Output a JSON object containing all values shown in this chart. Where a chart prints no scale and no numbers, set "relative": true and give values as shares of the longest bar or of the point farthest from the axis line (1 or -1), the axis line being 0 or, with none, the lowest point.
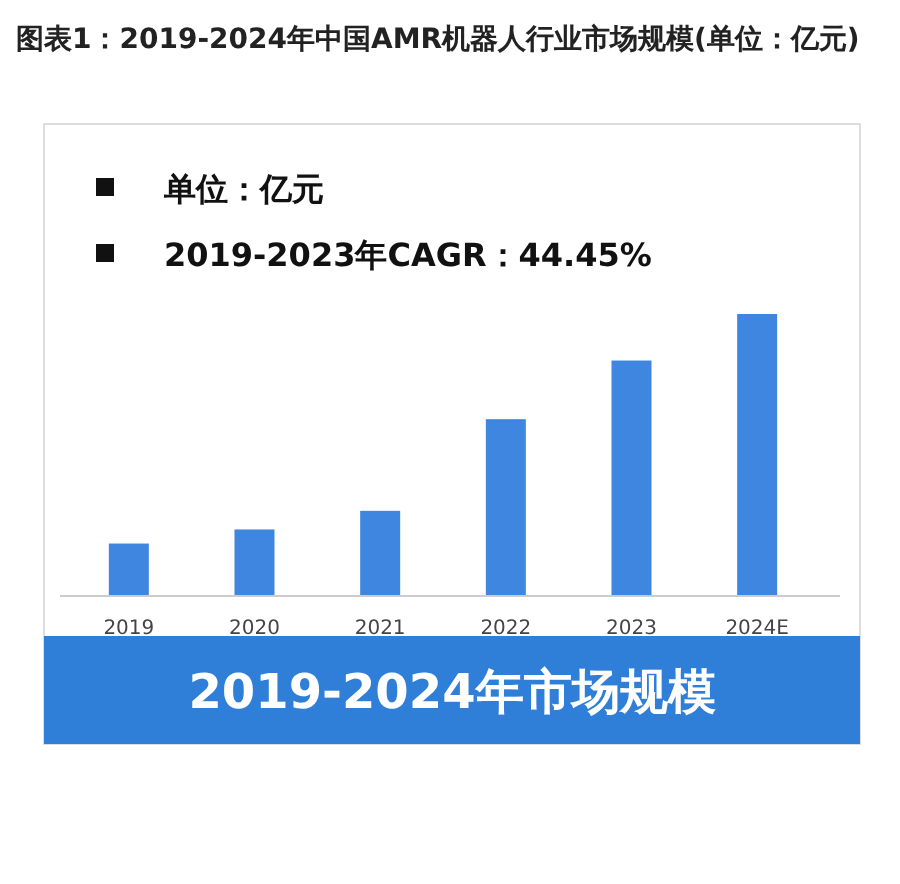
{
  "chart_data": {
    "type": "bar",
    "title": "图表1：2019-2024年中国AMR机器人行业市场规模(单位：亿元)",
    "subtitle": "2019-2024年市场规模",
    "annotations": [
      "单位：亿元",
      "2019-2023年CAGR：44.45%"
    ],
    "categories": [
      "2019",
      "2020",
      "2021",
      "2022",
      "2023",
      "2024E"
    ],
    "values": [
      0.186,
      0.236,
      0.302,
      0.627,
      0.835,
      1
    ],
    "color": "#3f86e0",
    "relative": true
  }
}
